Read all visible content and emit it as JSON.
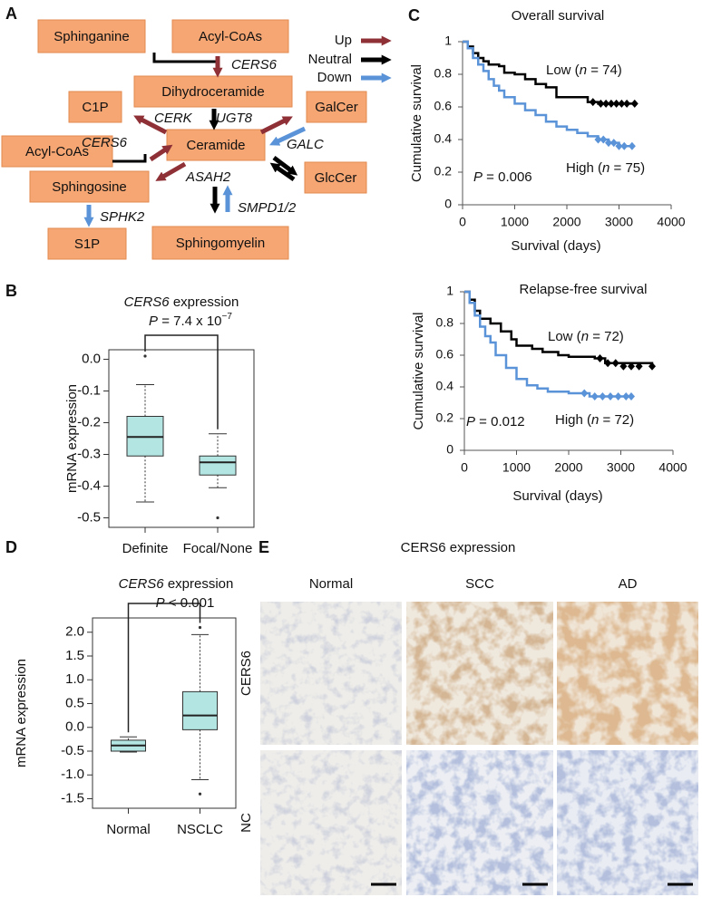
{
  "panel_a": {
    "label": "A",
    "nodes": [
      "Sphinganine",
      "Acyl-CoAs",
      "Dihydroceramide",
      "C1P",
      "GalCer",
      "Ceramide",
      "Acyl-CoAs",
      "GlcCer",
      "Sphingosine",
      "S1P",
      "Sphingomyelin"
    ],
    "legend": [
      {
        "label": "Up",
        "color": "#8e3036"
      },
      {
        "label": "Neutral",
        "color": "#000000"
      },
      {
        "label": "Down",
        "color": "#5a93d8"
      }
    ],
    "enzymes": [
      {
        "name": "CERS6",
        "color": "#8e3036"
      },
      {
        "name": "CERK",
        "color": "#8e3036"
      },
      {
        "name": "UGT8",
        "color": "#8e3036"
      },
      {
        "name": "CERS6",
        "color": "#8e3036"
      },
      {
        "name": "GALC",
        "color": "#5a93d8"
      },
      {
        "name": "ASAH2",
        "color": "#8e3036"
      },
      {
        "name": "SPHK2",
        "color": "#5a93d8"
      },
      {
        "name": "SMPD1/2",
        "color": "#5a93d8"
      }
    ]
  },
  "chart_data": [
    {
      "type": "box",
      "label": "B",
      "title": [
        "CERS6",
        " expression"
      ],
      "p_label": [
        "P",
        " = 7.4 x 10",
        "−7"
      ],
      "ylabel": "mRNA expression",
      "categories": [
        "Definite",
        "Focal/None"
      ],
      "color": "#b3e6e3",
      "ylim": [
        -0.53,
        0.03
      ],
      "yticks": [
        {
          "value": 0,
          "label": "0.0"
        },
        -0.1,
        -0.2,
        -0.3,
        -0.4,
        -0.5
      ],
      "boxes": [
        {
          "whislo": -0.45,
          "q1": -0.305,
          "med": -0.245,
          "q3": -0.18,
          "whishi": -0.08,
          "fliers": [
            0.01
          ]
        },
        {
          "whislo": -0.405,
          "q1": -0.365,
          "med": -0.325,
          "q3": -0.305,
          "whishi": -0.235,
          "fliers": [
            -0.5
          ]
        }
      ]
    },
    {
      "type": "line",
      "label": "C",
      "title": "Overall survival",
      "xlabel": "Survival (days)",
      "ylabel": "Cumulative survival",
      "p_label": [
        "P",
        " = 0.006"
      ],
      "step": true,
      "xlim": [
        0,
        4000
      ],
      "xticks": [
        0,
        1000,
        2000,
        3000,
        4000
      ],
      "ylim": [
        0,
        1
      ],
      "yticks": [
        0,
        0.2,
        0.4,
        0.6,
        0.8,
        1
      ],
      "series": [
        {
          "label": [
            "Low (",
            "n",
            " = 74)"
          ],
          "color": "#000000",
          "x": [
            0,
            100,
            200,
            300,
            400,
            500,
            700,
            800,
            1000,
            1200,
            1400,
            1600,
            1800,
            2200,
            2400,
            2600,
            3300
          ],
          "values": [
            1,
            0.97,
            0.93,
            0.9,
            0.88,
            0.86,
            0.85,
            0.81,
            0.8,
            0.77,
            0.74,
            0.72,
            0.66,
            0.66,
            0.63,
            0.62,
            0.62
          ],
          "censored_x": [
            2500,
            2650,
            2750,
            2850,
            2950,
            3050,
            3150,
            3300
          ],
          "censored_y": [
            0.63,
            0.62,
            0.62,
            0.62,
            0.62,
            0.62,
            0.62,
            0.62
          ]
        },
        {
          "label": [
            "High (",
            "n",
            " = 75)"
          ],
          "color": "#5a93d8",
          "x": [
            0,
            100,
            200,
            300,
            400,
            500,
            600,
            700,
            800,
            1000,
            1200,
            1400,
            1600,
            1800,
            2000,
            2200,
            2400,
            2600,
            2800,
            3000,
            3250
          ],
          "values": [
            1,
            0.96,
            0.9,
            0.86,
            0.82,
            0.77,
            0.73,
            0.7,
            0.66,
            0.62,
            0.58,
            0.55,
            0.51,
            0.48,
            0.46,
            0.44,
            0.42,
            0.4,
            0.38,
            0.36,
            0.36
          ],
          "censored_x": [
            2600,
            2700,
            2800,
            2900,
            3000,
            3100,
            3250
          ],
          "censored_y": [
            0.4,
            0.4,
            0.38,
            0.38,
            0.36,
            0.36,
            0.36
          ]
        }
      ]
    },
    {
      "type": "line",
      "title": "Relapse-free survival",
      "xlabel": "Survival (days)",
      "ylabel": "Cumulative survival",
      "p_label": [
        "P",
        " = 0.012"
      ],
      "step": true,
      "xlim": [
        0,
        4000
      ],
      "xticks": [
        0,
        1000,
        2000,
        3000,
        4000
      ],
      "ylim": [
        0,
        1
      ],
      "yticks": [
        0,
        0.2,
        0.4,
        0.6,
        0.8,
        1
      ],
      "series": [
        {
          "label": [
            "Low (",
            "n",
            " = 72)"
          ],
          "color": "#000000",
          "x": [
            0,
            100,
            200,
            300,
            500,
            700,
            900,
            1000,
            1300,
            1500,
            1800,
            2000,
            2500,
            2700,
            3600
          ],
          "values": [
            1,
            0.95,
            0.88,
            0.83,
            0.8,
            0.75,
            0.7,
            0.66,
            0.64,
            0.62,
            0.6,
            0.59,
            0.58,
            0.55,
            0.53
          ],
          "censored_x": [
            2600,
            2750,
            2900,
            3050,
            3200,
            3350,
            3600
          ],
          "censored_y": [
            0.58,
            0.55,
            0.55,
            0.53,
            0.53,
            0.53,
            0.53
          ]
        },
        {
          "label": [
            "High (",
            "n",
            " = 72)"
          ],
          "color": "#5a93d8",
          "x": [
            0,
            100,
            200,
            300,
            400,
            500,
            600,
            800,
            1000,
            1200,
            1400,
            1600,
            2000,
            2400,
            3200
          ],
          "values": [
            1,
            0.93,
            0.85,
            0.78,
            0.72,
            0.68,
            0.6,
            0.52,
            0.45,
            0.41,
            0.39,
            0.37,
            0.36,
            0.34,
            0.34
          ],
          "censored_x": [
            2300,
            2500,
            2650,
            2800,
            2950,
            3100,
            3200
          ],
          "censored_y": [
            0.36,
            0.34,
            0.34,
            0.34,
            0.34,
            0.34,
            0.34
          ]
        }
      ]
    },
    {
      "type": "box",
      "label": "D",
      "title": [
        "CERS6",
        " expression"
      ],
      "p_label": [
        "P",
        " < 0.001"
      ],
      "ylabel": "mRNA expression",
      "categories": [
        "Normal",
        "NSCLC"
      ],
      "color": "#b3e6e3",
      "ylim": [
        -1.7,
        2.3
      ],
      "yticks": [
        {
          "value": 2,
          "label": "2.0"
        },
        1.5,
        {
          "value": 1,
          "label": "1.0"
        },
        0.5,
        {
          "value": 0,
          "label": "0.0"
        },
        -0.5,
        {
          "value": -1,
          "label": "-1.0"
        },
        -1.5
      ],
      "boxes": [
        {
          "whislo": -0.52,
          "q1": -0.5,
          "med": -0.38,
          "q3": -0.27,
          "whishi": -0.2,
          "fliers": []
        },
        {
          "whislo": -1.1,
          "q1": -0.05,
          "med": 0.25,
          "q3": 0.75,
          "whishi": 1.95,
          "fliers": [
            2.1,
            -1.4
          ]
        }
      ]
    }
  ],
  "panel_e": {
    "label": "E",
    "title": "CERS6 expression",
    "columns": [
      "Normal",
      "SCC",
      "AD"
    ],
    "rows": [
      "CERS6",
      "NC"
    ]
  }
}
